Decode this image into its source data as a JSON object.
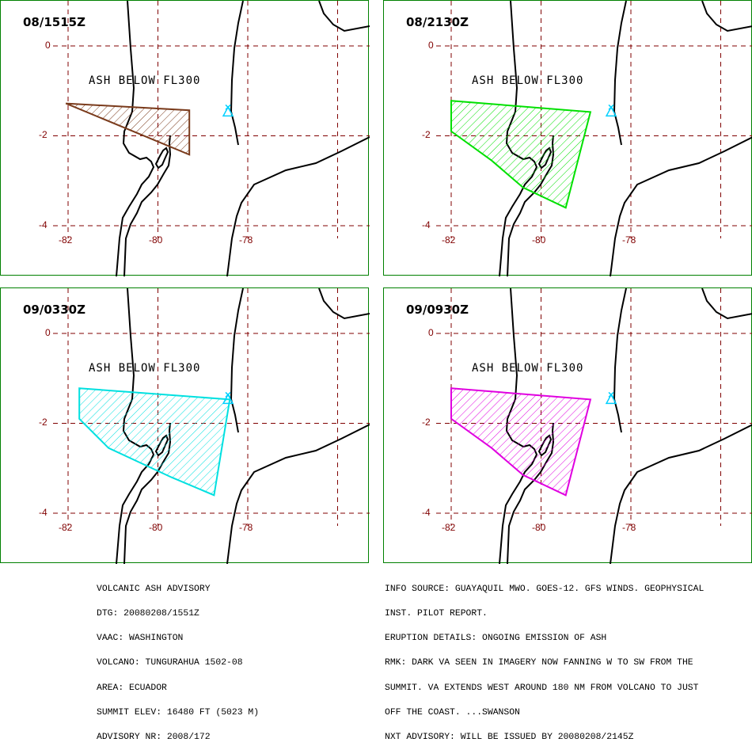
{
  "panels": [
    {
      "title": "08/1515Z",
      "label": "ASH BELOW FL300",
      "color": "#7a3b1c",
      "polygon": [
        [
          -82.05,
          -1.28
        ],
        [
          -79.3,
          -1.43
        ],
        [
          -79.3,
          -2.42
        ]
      ]
    },
    {
      "title": "08/2130Z",
      "label": "ASH BELOW FL300",
      "color": "#00e000",
      "polygon": [
        [
          -82.0,
          -1.22
        ],
        [
          -78.9,
          -1.47
        ],
        [
          -79.45,
          -3.6
        ],
        [
          -80.4,
          -3.15
        ],
        [
          -81.1,
          -2.55
        ],
        [
          -82.0,
          -1.9
        ]
      ]
    },
    {
      "title": "09/0330Z",
      "label": "ASH BELOW FL300",
      "color": "#00e0e0",
      "polygon": [
        [
          -81.75,
          -1.22
        ],
        [
          -78.4,
          -1.47
        ],
        [
          -78.75,
          -3.6
        ],
        [
          -79.7,
          -3.2
        ],
        [
          -81.1,
          -2.55
        ],
        [
          -81.75,
          -1.9
        ]
      ]
    },
    {
      "title": "09/0930Z",
      "label": "ASH BELOW FL300",
      "color": "#e000e0",
      "polygon": [
        [
          -82.0,
          -1.22
        ],
        [
          -78.9,
          -1.47
        ],
        [
          -79.45,
          -3.6
        ],
        [
          -80.4,
          -3.15
        ],
        [
          -81.1,
          -2.55
        ],
        [
          -82.0,
          -1.9
        ]
      ]
    }
  ],
  "axis": {
    "lat_labels": [
      "0",
      "-2",
      "-4"
    ],
    "lon_labels": [
      "-82",
      "-80",
      "-78"
    ],
    "lat_values": [
      0,
      -2,
      -4
    ],
    "lon_values": [
      -82,
      -80,
      -78
    ]
  },
  "volcano": {
    "name": "TUNGURAHUA",
    "lon": -78.44,
    "lat": -1.47
  },
  "advisory_left": [
    "VOLCANIC ASH ADVISORY",
    "DTG: 20080208/1551Z",
    "VAAC: WASHINGTON",
    "VOLCANO: TUNGURAHUA 1502-08",
    "AREA: ECUADOR",
    "SUMMIT ELEV: 16480 FT (5023 M)",
    "ADVISORY NR: 2008/172"
  ],
  "advisory_right": [
    "INFO SOURCE: GUAYAQUIL MWO. GOES-12. GFS WINDS. GEOPHYSICAL",
    "INST. PILOT REPORT.",
    "ERUPTION DETAILS: ONGOING EMISSION OF ASH",
    "RMK: DARK VA SEEN IN IMAGERY NOW FANNING W TO SW FROM THE",
    "SUMMIT. VA EXTENDS WEST AROUND 180 NM FROM VOLCANO TO JUST",
    "OFF THE COAST. ...SWANSON",
    "NXT ADVISORY: WILL BE ISSUED BY 20080208/2145Z"
  ],
  "colors": {
    "border": "#008000",
    "grid": "#800000",
    "land": "#000000"
  }
}
